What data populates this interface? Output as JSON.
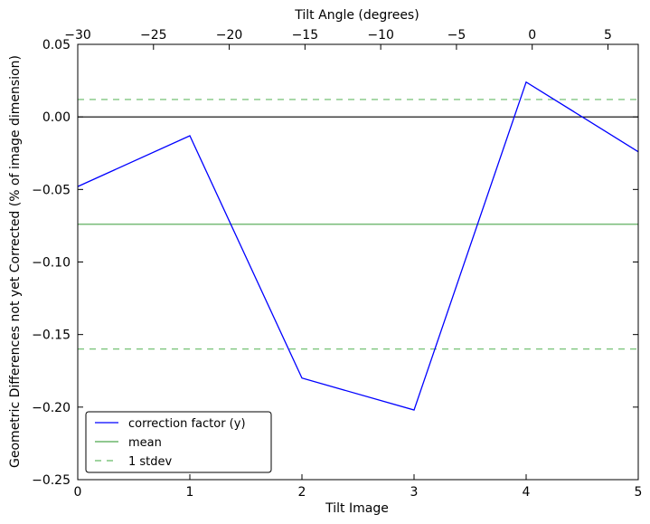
{
  "chart_data": {
    "type": "line",
    "xlabel": "Tilt Image",
    "ylabel": "Geometric Differences not yet Corrected (% of image dimension)",
    "top_xlabel": "Tilt Angle (degrees)",
    "xlim": [
      0,
      5
    ],
    "ylim": [
      -0.25,
      0.05
    ],
    "top_xlim": [
      -30,
      7
    ],
    "x_ticks": [
      0,
      1,
      2,
      3,
      4,
      5
    ],
    "x_tick_labels": [
      "0",
      "1",
      "2",
      "3",
      "4",
      "5"
    ],
    "y_ticks": [
      0.05,
      0.0,
      -0.05,
      -0.1,
      -0.15,
      -0.2,
      -0.25
    ],
    "y_tick_labels": [
      "0.05",
      "0.00",
      "−0.05",
      "−0.10",
      "−0.15",
      "−0.20",
      "−0.25"
    ],
    "top_x_ticks": [
      -30,
      -25,
      -20,
      -15,
      -10,
      -5,
      0,
      5
    ],
    "top_x_tick_labels": [
      "−30",
      "−25",
      "−20",
      "−15",
      "−10",
      "−5",
      "0",
      "5"
    ],
    "grid": false,
    "legend_position": "lower-left",
    "zero_line": 0.0,
    "series": [
      {
        "name": "correction factor (y)",
        "style": "solid",
        "color": "#0000ff",
        "x": [
          0,
          1,
          2,
          3,
          4,
          5
        ],
        "y": [
          -0.048,
          -0.013,
          -0.18,
          -0.202,
          0.024,
          -0.024
        ]
      },
      {
        "name": "mean",
        "style": "solid",
        "color": "#4da64d",
        "value": -0.074
      },
      {
        "name": "1 stdev",
        "style": "dashed",
        "color": "#66bb66",
        "values": [
          0.012,
          -0.16
        ]
      }
    ]
  }
}
